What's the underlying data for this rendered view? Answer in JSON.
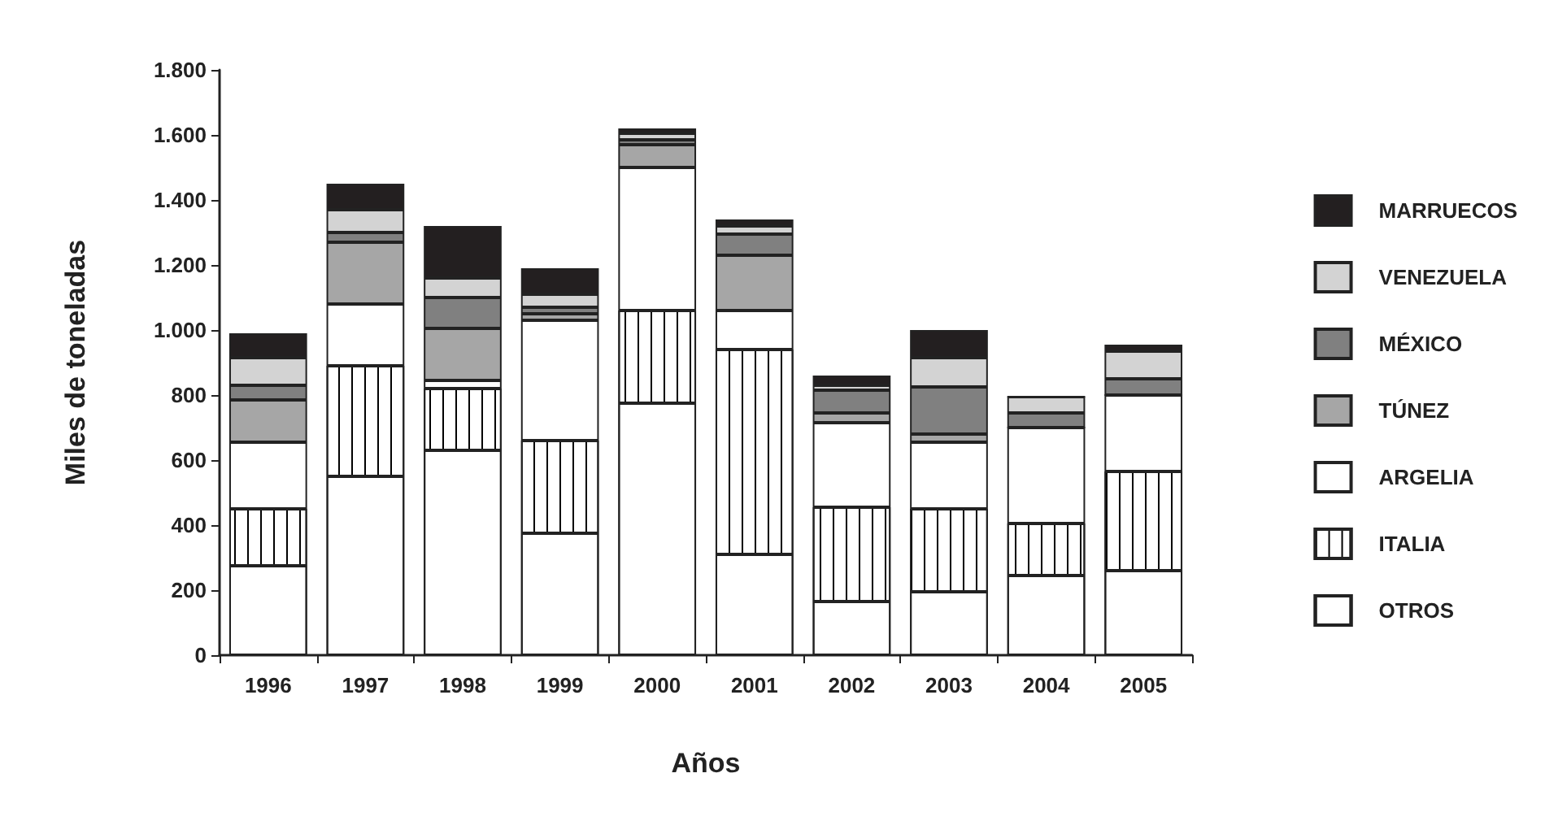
{
  "chart_data": {
    "type": "bar",
    "stacked": true,
    "xlabel": "Años",
    "ylabel": "Miles de toneladas",
    "categories": [
      "1996",
      "1997",
      "1998",
      "1999",
      "2000",
      "2001",
      "2002",
      "2003",
      "2004",
      "2005"
    ],
    "series": [
      {
        "name": "OTROS",
        "color": "#ffffff",
        "values": [
          275,
          550,
          630,
          375,
          775,
          310,
          165,
          195,
          245,
          260
        ]
      },
      {
        "name": "ITALIA",
        "color": "#ffffff",
        "values": [
          175,
          340,
          190,
          285,
          285,
          630,
          290,
          255,
          160,
          305
        ]
      },
      {
        "name": "ARGELIA",
        "color": "#ffffff",
        "values": [
          205,
          190,
          25,
          370,
          440,
          120,
          260,
          205,
          295,
          235
        ]
      },
      {
        "name": "TÚNEZ",
        "color": "#a6a6a6",
        "values": [
          130,
          190,
          160,
          20,
          70,
          170,
          30,
          25,
          0,
          0
        ]
      },
      {
        "name": "MÉXICO",
        "color": "#808080",
        "values": [
          45,
          30,
          95,
          20,
          15,
          65,
          70,
          145,
          45,
          50
        ]
      },
      {
        "name": "VENEZUELA",
        "color": "#d3d3d3",
        "values": [
          85,
          70,
          60,
          40,
          20,
          25,
          15,
          90,
          50,
          85
        ]
      },
      {
        "name": "MARRUECOS",
        "color": "#231f20",
        "values": [
          75,
          80,
          160,
          80,
          15,
          20,
          30,
          85,
          0,
          20
        ]
      }
    ],
    "ylim": [
      0,
      1800
    ],
    "yticks": [
      0,
      200,
      400,
      600,
      800,
      {
        "value": 1000,
        "label": "1.000"
      },
      {
        "value": 1200,
        "label": "1.200"
      },
      {
        "value": 1400,
        "label": "1.400"
      },
      {
        "value": 1600,
        "label": "1.600"
      },
      {
        "value": 1800,
        "label": "1.800"
      }
    ],
    "grid": false,
    "legend": "right"
  }
}
